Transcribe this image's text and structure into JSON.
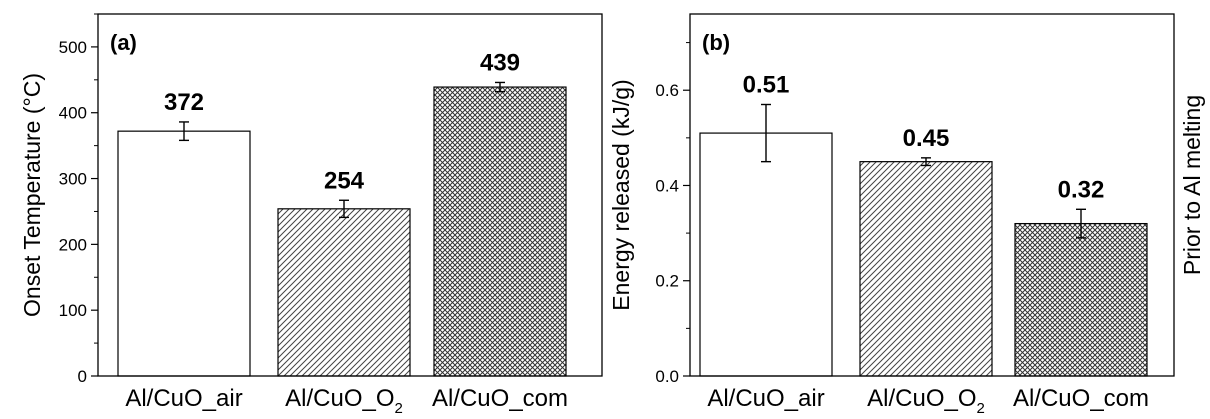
{
  "chart_data": [
    {
      "type": "bar",
      "panel_label": "(a)",
      "categories": [
        "Al/CuO_air",
        "Al/CuO_O",
        "Al/CuO_com"
      ],
      "category_subscripts": [
        "",
        "2",
        ""
      ],
      "values": [
        372,
        254,
        439
      ],
      "errors": [
        14,
        13,
        7
      ],
      "value_labels": [
        "372",
        "254",
        "439"
      ],
      "patterns": [
        "none",
        "diagonal",
        "crosshatch"
      ],
      "ylabel": "Onset Temperature (°C)",
      "ylim": [
        0,
        550
      ],
      "yticks": [
        0,
        100,
        200,
        300,
        400,
        500
      ],
      "ytick_labels": [
        "0",
        "100",
        "200",
        "300",
        "400",
        "500"
      ]
    },
    {
      "type": "bar",
      "panel_label": "(b)",
      "categories": [
        "Al/CuO_air",
        "Al/CuO_O",
        "Al/CuO_com"
      ],
      "category_subscripts": [
        "",
        "2",
        ""
      ],
      "values": [
        0.51,
        0.45,
        0.32
      ],
      "errors": [
        0.06,
        0.008,
        0.03
      ],
      "value_labels": [
        "0.51",
        "0.45",
        "0.32"
      ],
      "patterns": [
        "none",
        "diagonal",
        "crosshatch"
      ],
      "ylabel": "Energy released (kJ/g)",
      "right_label": "Prior to Al melting",
      "ylim": [
        0,
        0.76
      ],
      "yticks": [
        0,
        0.2,
        0.4,
        0.6
      ],
      "ytick_labels": [
        "0.0",
        "0.2",
        "0.4",
        "0.6"
      ]
    }
  ]
}
